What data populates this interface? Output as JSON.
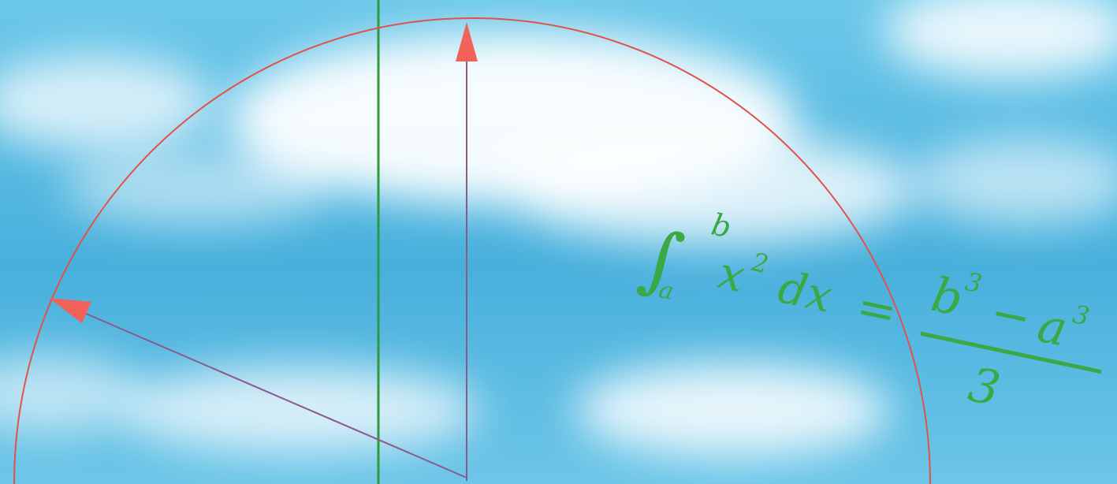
{
  "colors": {
    "sky": "#62c0e4",
    "sky_deep": "#3fa8d6",
    "cloud": "#ffffff",
    "circle": "#e0524a",
    "arrow_fill": "#f0625a",
    "arrow_shaft": "#8a5a8a",
    "vertical_line": "#2e9a3a",
    "formula": "#3aa845"
  },
  "formula": {
    "integral_sign": "∫",
    "upper_limit": "b",
    "lower_limit": "a",
    "integrand": "x",
    "integrand_power": "2",
    "differential": "dx",
    "equals": "=",
    "numerator_left": "b",
    "numerator_left_power": "3",
    "minus": "−",
    "numerator_right": "a",
    "numerator_right_power": "3",
    "denominator": "3"
  }
}
